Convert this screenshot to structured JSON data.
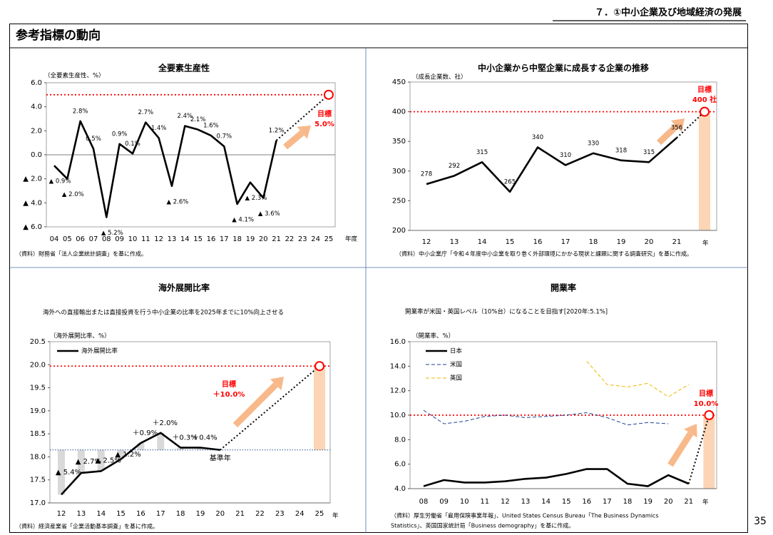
{
  "header": "７．①中小企業及び地域経済の発展",
  "page_title": "参考指標の動向",
  "page_number": "35",
  "chart_data": [
    {
      "type": "line",
      "title": "全要素生産性",
      "y_label": "（全要素生産性、%）",
      "x_label": "年度",
      "categories": [
        "04",
        "05",
        "06",
        "07",
        "08",
        "09",
        "10",
        "11",
        "12",
        "13",
        "14",
        "15",
        "16",
        "17",
        "18",
        "19",
        "20",
        "21",
        "22",
        "23",
        "24",
        "25"
      ],
      "values": [
        -0.9,
        -2.0,
        2.8,
        0.5,
        -5.2,
        0.9,
        0.1,
        2.7,
        1.4,
        -2.6,
        2.4,
        2.1,
        1.6,
        0.7,
        -4.1,
        -2.3,
        -3.6,
        1.2,
        null,
        null,
        null,
        null
      ],
      "value_labels": [
        "▲ 0.9%",
        "▲ 2.0%",
        "2.8%",
        "0.5%",
        "▲ 5.2%",
        "0.9%",
        "0.1%",
        "2.7%",
        "1.4%",
        "▲ 2.6%",
        "2.4%",
        "2.1%",
        "1.6%",
        "0.7%",
        "▲ 4.1%",
        "▲ 2.3%",
        "▲ 3.6%",
        "1.2%",
        null,
        null,
        null,
        null
      ],
      "color": "#000000",
      "ylim": [
        -6,
        6
      ],
      "yticks": [
        {
          "value": -6,
          "label": "▲ 6.0"
        },
        {
          "value": -4,
          "label": "▲ 4.0"
        },
        {
          "value": -2,
          "label": "▲ 2.0"
        },
        {
          "value": 0,
          "label": "0.0"
        },
        {
          "value": 2,
          "label": "2.0"
        },
        {
          "value": 4,
          "label": "4.0"
        },
        {
          "value": 6,
          "label": "6.0"
        }
      ],
      "target": 5,
      "target_title": "目標",
      "target_label": "5.0%",
      "target_color": "#ff0000",
      "arrow_color": "#f8b98a",
      "source": [
        "（資料）財務省「法人企業統計調査」を基に作成。"
      ]
    },
    {
      "type": "line",
      "title": "中小企業から中堅企業に成長する企業の推移",
      "y_label": "（成長企業数、社）",
      "x_label": "年",
      "categories": [
        "12",
        "13",
        "14",
        "15",
        "16",
        "17",
        "18",
        "19",
        "20",
        "21"
      ],
      "values": [
        278,
        292,
        315,
        265,
        340,
        310,
        330,
        318,
        315,
        356
      ],
      "color": "#000000",
      "ylim": [
        200,
        450
      ],
      "yticks": [
        200,
        250,
        300,
        350,
        400,
        450
      ],
      "target": 400,
      "target_title": "目標",
      "target_label": "400 社",
      "target_color": "#ff0000",
      "arrow_color": "#f8b98a",
      "target_bar_color": "#fbd5b5",
      "source": [
        "（資料）中小企業庁「令和４年度中小企業を取り巻く外部環境にかかる現状と課題に関する調査研究」を基に作成。"
      ]
    },
    {
      "type": "line",
      "title": "海外展開比率",
      "subtitle": "海外への直接輸出または直接投資を行う中小企業の比率を2025年までに10%向上させる",
      "y_label": "（海外展開比率、%）",
      "x_label": "年",
      "categories": [
        "12",
        "13",
        "14",
        "15",
        "16",
        "17",
        "18",
        "19",
        "20",
        "21",
        "22",
        "23",
        "24",
        "25"
      ],
      "series": [
        {
          "name": "海外展開比率",
          "color": "#000000",
          "values": [
            17.18,
            17.65,
            17.69,
            17.95,
            18.3,
            18.52,
            18.2,
            18.2,
            18.15,
            null,
            null,
            null,
            null,
            null
          ]
        }
      ],
      "change_labels": [
        "▲ 5.4%",
        "▲ 2.7%",
        "▲ 2.5%",
        "▲ 1.2%",
        "＋0.9%",
        "＋2.0%",
        "＋0.3%",
        "＋0.4%",
        null,
        null,
        null,
        null,
        null,
        null
      ],
      "change_bar_color": "#d9d9d9",
      "baseline": 18.15,
      "baseline_label": "基準年",
      "baseline_color": "#1f4e9a",
      "ylim": [
        17.0,
        20.5
      ],
      "yticks": [
        {
          "value": 17.0,
          "label": "17.0"
        },
        {
          "value": 17.5,
          "label": "17.5"
        },
        {
          "value": 18.0,
          "label": "18.0"
        },
        {
          "value": 18.5,
          "label": "18.5"
        },
        {
          "value": 19.0,
          "label": "19.0"
        },
        {
          "value": 19.5,
          "label": "19.5"
        },
        {
          "value": 20.0,
          "label": "20.0"
        },
        {
          "value": 20.5,
          "label": "20.5"
        }
      ],
      "legend": "upper left",
      "target": 19.97,
      "target_title": "目標",
      "target_label": "＋10.0%",
      "target_color": "#ff0000",
      "arrow_color": "#f8b98a",
      "target_bar_color": "#fbd5b5",
      "source": [
        "（資料）経済産業省「企業活動基本調査」を基に作成。"
      ]
    },
    {
      "type": "line",
      "title": "開業率",
      "subtitle": "開業率が米国・英国レベル（10%台）になることを目指す[2020年:5.1%]",
      "y_label": "（開業率、%）",
      "x_label": "年",
      "categories": [
        "08",
        "09",
        "10",
        "11",
        "12",
        "13",
        "14",
        "15",
        "16",
        "17",
        "18",
        "19",
        "20",
        "21"
      ],
      "series": [
        {
          "name": "日本",
          "color": "#000000",
          "style": "solid",
          "values": [
            4.2,
            4.7,
            4.5,
            4.5,
            4.6,
            4.8,
            4.9,
            5.2,
            5.6,
            5.6,
            4.4,
            4.2,
            5.1,
            4.4
          ]
        },
        {
          "name": "米国",
          "color": "#1f3f8f",
          "style": "dashed",
          "values": [
            10.4,
            9.3,
            9.5,
            9.9,
            10.0,
            9.8,
            9.9,
            10.0,
            10.2,
            9.8,
            9.2,
            9.4,
            9.3,
            null
          ]
        },
        {
          "name": "英国",
          "color": "#f2b600",
          "style": "dashed",
          "values": [
            null,
            null,
            null,
            null,
            null,
            null,
            null,
            null,
            14.4,
            12.5,
            12.3,
            12.6,
            11.5,
            12.5
          ]
        }
      ],
      "ylim": [
        4,
        16
      ],
      "yticks": [
        {
          "value": 4,
          "label": "4.0"
        },
        {
          "value": 6,
          "label": "6.0"
        },
        {
          "value": 8,
          "label": "8.0"
        },
        {
          "value": 10,
          "label": "10.0"
        },
        {
          "value": 12,
          "label": "12.0"
        },
        {
          "value": 14,
          "label": "14.0"
        },
        {
          "value": 16,
          "label": "16.0"
        }
      ],
      "legend": "upper left",
      "target": 10,
      "target_title": "目標",
      "target_label": "10.0%",
      "target_color": "#ff0000",
      "arrow_color": "#f8b98a",
      "target_bar_color": "#fbd5b5",
      "source": [
        "（資料）厚生労働省「雇用保険事業年報」、United States Census Bureau「The Business Dynamics",
        "Statistics」、英国国家統計局「Business demography」を基に作成。"
      ]
    }
  ]
}
